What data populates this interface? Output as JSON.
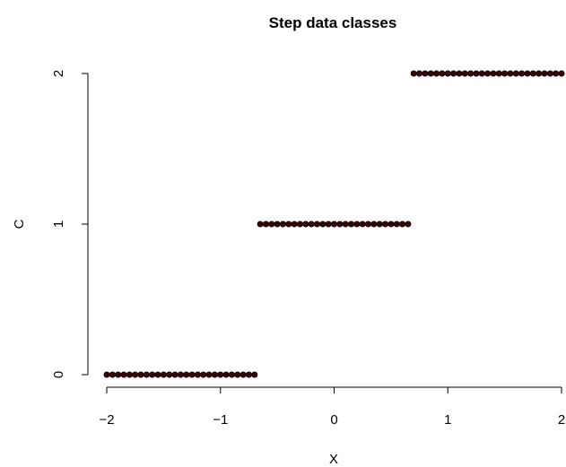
{
  "chart_data": {
    "type": "scatter",
    "title": "Step data classes",
    "xlabel": "X",
    "ylabel": "C",
    "xlim": [
      -2,
      2
    ],
    "ylim": [
      0,
      2
    ],
    "x_ticks": [
      -2,
      -1,
      0,
      1,
      2
    ],
    "x_tick_labels": [
      "−2",
      "−1",
      "0",
      "1",
      "2"
    ],
    "y_ticks": [
      0,
      1,
      2
    ],
    "y_tick_labels": [
      "0",
      "1",
      "2"
    ],
    "grid": false,
    "point_color": "#3b0000",
    "series": [
      {
        "x": [
          -2.0,
          -1.95,
          -1.9,
          -1.85,
          -1.8,
          -1.75,
          -1.7,
          -1.65,
          -1.6,
          -1.55,
          -1.5,
          -1.45,
          -1.4,
          -1.35,
          -1.3,
          -1.25,
          -1.2,
          -1.15,
          -1.1,
          -1.05,
          -1.0,
          -0.95,
          -0.9,
          -0.85,
          -0.8,
          -0.75,
          -0.7,
          -0.65,
          -0.6,
          -0.55,
          -0.5,
          -0.45,
          -0.4,
          -0.35,
          -0.3,
          -0.25,
          -0.2,
          -0.15,
          -0.1,
          -0.05,
          0.0,
          0.05,
          0.1,
          0.15,
          0.2,
          0.25,
          0.3,
          0.35,
          0.4,
          0.45,
          0.5,
          0.55,
          0.6,
          0.65,
          0.7,
          0.75,
          0.8,
          0.85,
          0.9,
          0.95,
          1.0,
          1.05,
          1.1,
          1.15,
          1.2,
          1.25,
          1.3,
          1.35,
          1.4,
          1.45,
          1.5,
          1.55,
          1.6,
          1.65,
          1.7,
          1.75,
          1.8,
          1.85,
          1.9,
          1.95,
          2.0
        ],
        "y": [
          0,
          0,
          0,
          0,
          0,
          0,
          0,
          0,
          0,
          0,
          0,
          0,
          0,
          0,
          0,
          0,
          0,
          0,
          0,
          0,
          0,
          0,
          0,
          0,
          0,
          0,
          0,
          1,
          1,
          1,
          1,
          1,
          1,
          1,
          1,
          1,
          1,
          1,
          1,
          1,
          1,
          1,
          1,
          1,
          1,
          1,
          1,
          1,
          1,
          1,
          1,
          1,
          1,
          1,
          2,
          2,
          2,
          2,
          2,
          2,
          2,
          2,
          2,
          2,
          2,
          2,
          2,
          2,
          2,
          2,
          2,
          2,
          2,
          2,
          2,
          2,
          2,
          2,
          2,
          2,
          2
        ]
      }
    ]
  }
}
